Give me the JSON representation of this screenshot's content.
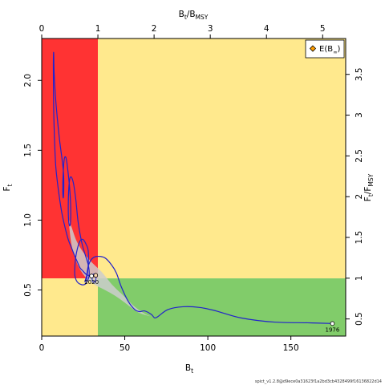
{
  "chart_data": {
    "type": "line",
    "axes": {
      "bottom": {
        "label_main": "B",
        "label_sub": "t",
        "range": [
          0,
          183
        ],
        "ticks": [
          0,
          50,
          100,
          150
        ]
      },
      "left": {
        "label_main": "F",
        "label_sub": "t",
        "range": [
          0.17,
          2.3
        ],
        "ticks": [
          0.5,
          1.0,
          1.5,
          2.0
        ],
        "tick_labels": [
          "0.5",
          "1.0",
          "1.5",
          "2.0"
        ]
      },
      "top": {
        "label_main": "B",
        "label_sub": "t",
        "label_sep": "/",
        "label_main2": "B",
        "label_sub2": "MSY",
        "range": [
          0,
          5.41
        ],
        "ticks": [
          0,
          1,
          2,
          3,
          4,
          5
        ]
      },
      "right": {
        "label_main": "F",
        "label_sub": "t",
        "label_sep": "/",
        "label_main2": "F",
        "label_sub2": "MSY",
        "range": [
          0.29,
          3.94
        ],
        "ticks": [
          0.5,
          1,
          1.5,
          2,
          2.5,
          3,
          3.5
        ],
        "tick_labels": [
          "0.5",
          "1",
          "1.5",
          "2",
          "2.5",
          "3",
          "3.5"
        ]
      }
    },
    "reference": {
      "bmsy": 33.8,
      "fmsy": 0.583
    },
    "regions": {
      "overfishing_collapse": "#ff3333",
      "unsafe": "#ffe98d",
      "safe": "#81cc6a"
    },
    "trajectory_color": "#2222cc",
    "trajectory": [
      [
        175.0,
        0.26
      ],
      [
        160,
        0.265
      ],
      [
        140,
        0.27
      ],
      [
        120,
        0.3
      ],
      [
        105,
        0.35
      ],
      [
        95,
        0.375
      ],
      [
        85,
        0.38
      ],
      [
        76,
        0.36
      ],
      [
        70,
        0.31
      ],
      [
        68,
        0.3
      ],
      [
        66,
        0.325
      ],
      [
        62,
        0.35
      ],
      [
        59,
        0.345
      ],
      [
        56,
        0.36
      ],
      [
        52,
        0.42
      ],
      [
        48,
        0.52
      ],
      [
        45,
        0.62
      ],
      [
        42,
        0.68
      ],
      [
        38,
        0.73
      ],
      [
        33,
        0.74
      ],
      [
        30,
        0.72
      ],
      [
        28,
        0.67
      ],
      [
        27,
        0.6
      ],
      [
        26,
        0.56
      ],
      [
        27,
        0.58
      ],
      [
        28,
        0.68
      ],
      [
        28,
        0.78
      ],
      [
        27,
        0.82
      ],
      [
        25,
        0.86
      ],
      [
        23,
        0.85
      ],
      [
        21,
        0.77
      ],
      [
        20,
        0.68
      ],
      [
        20,
        0.6
      ],
      [
        22,
        0.55
      ],
      [
        26,
        0.54
      ],
      [
        28.5,
        0.6
      ],
      [
        28,
        0.68
      ],
      [
        24.5,
        0.82
      ],
      [
        22,
        0.98
      ],
      [
        20.5,
        1.15
      ],
      [
        19,
        1.27
      ],
      [
        17.5,
        1.31
      ],
      [
        16.5,
        1.26
      ],
      [
        16,
        1.12
      ],
      [
        16.2,
        1.0
      ],
      [
        17,
        0.96
      ],
      [
        17.5,
        1.05
      ],
      [
        17,
        1.2
      ],
      [
        15.5,
        1.38
      ],
      [
        14.5,
        1.45
      ],
      [
        13.5,
        1.43
      ],
      [
        12.8,
        1.3
      ],
      [
        12.7,
        1.2
      ],
      [
        13,
        1.16
      ],
      [
        13.3,
        1.24
      ],
      [
        13.1,
        1.34
      ],
      [
        12.2,
        1.44
      ],
      [
        10.5,
        1.6
      ],
      [
        8.5,
        1.85
      ],
      [
        7.5,
        2.05
      ],
      [
        7.2,
        2.2
      ],
      [
        7,
        2.1
      ],
      [
        7.2,
        1.8
      ],
      [
        7.8,
        1.55
      ],
      [
        8.5,
        1.38
      ],
      [
        10,
        1.22
      ],
      [
        12,
        1.06
      ],
      [
        14,
        0.95
      ],
      [
        16,
        0.86
      ],
      [
        18,
        0.8
      ],
      [
        20,
        0.74
      ],
      [
        21.5,
        0.7
      ],
      [
        23,
        0.66
      ],
      [
        24.5,
        0.64
      ],
      [
        27.0,
        0.61
      ],
      [
        30.0,
        0.6
      ]
    ],
    "uncertainty_band": {
      "upper": [
        [
          16,
          1.02
        ],
        [
          18,
          0.95
        ],
        [
          21,
          0.85
        ],
        [
          25,
          0.77
        ],
        [
          30,
          0.7
        ],
        [
          36,
          0.63
        ],
        [
          43,
          0.53
        ],
        [
          50,
          0.45
        ],
        [
          56,
          0.38
        ],
        [
          62,
          0.33
        ],
        [
          66,
          0.31
        ]
      ],
      "lower": [
        [
          66,
          0.31
        ],
        [
          58,
          0.34
        ],
        [
          50,
          0.41
        ],
        [
          44,
          0.46
        ],
        [
          38,
          0.5
        ],
        [
          33,
          0.53
        ],
        [
          28,
          0.57
        ],
        [
          24,
          0.63
        ],
        [
          21,
          0.7
        ],
        [
          18,
          0.82
        ],
        [
          16,
          1.02
        ]
      ]
    },
    "uncertainty_band_color": "#cccccc",
    "end_ellipse": {
      "cx": 31.5,
      "cy": 0.585,
      "rx": 1.2,
      "ry": 0.03
    },
    "points": [
      {
        "label": "1976",
        "x": 175.0,
        "y": 0.26,
        "color": "#ffffff"
      },
      {
        "label": "2020",
        "x": 30.0,
        "y": 0.6,
        "color": "#ffffff"
      },
      {
        "label": "",
        "x": 32.5,
        "y": 0.605,
        "color": "#ffd7b0"
      }
    ],
    "legend": {
      "placement": "top-right",
      "symbol_color": "#ff9d00",
      "label_main": "E(B",
      "label_sub": "∞",
      "label_end": ")"
    },
    "footnote": "spict_v1.2.8@d9ece0a31623f1a2bd3cb4328499f16136822d14"
  }
}
